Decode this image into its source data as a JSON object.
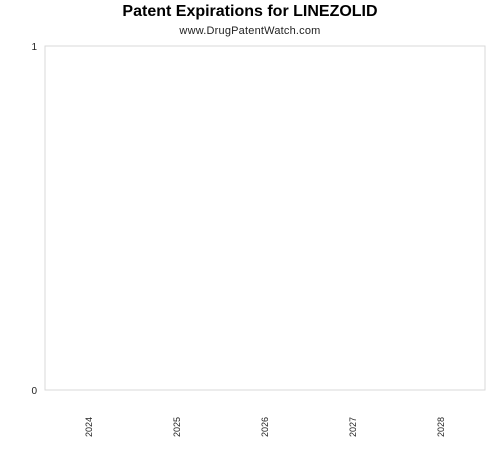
{
  "chart_data": {
    "type": "bar",
    "title": "Patent Expirations for LINEZOLID",
    "subtitle": "www.DrugPatentWatch.com",
    "categories": [
      "2024",
      "2025",
      "2026",
      "2027",
      "2028"
    ],
    "values": [
      0,
      0,
      0,
      0,
      0
    ],
    "xlabel": "",
    "ylabel": "",
    "ylim": [
      0,
      1
    ],
    "yticks": [
      "0",
      "1"
    ],
    "grid": false,
    "legend": "none",
    "colors": {
      "plot_border": "#d9d9d9",
      "axis": "#d9d9d9",
      "bar": "#4a7ebb"
    }
  }
}
